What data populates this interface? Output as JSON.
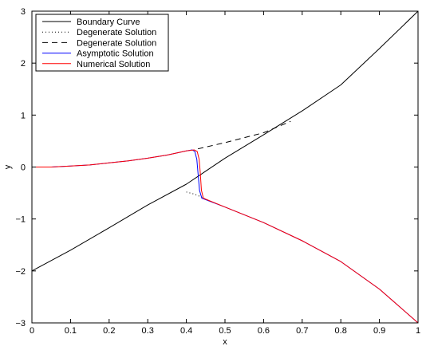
{
  "chart_data": {
    "type": "line",
    "title": "",
    "xlabel": "x",
    "ylabel": "y",
    "xlim": [
      0,
      1
    ],
    "ylim": [
      -3,
      3
    ],
    "x_ticks": [
      0,
      0.1,
      0.2,
      0.3,
      0.4,
      0.5,
      0.6,
      0.7,
      0.8,
      0.9,
      1
    ],
    "x_tick_labels": [
      "0",
      "0.1",
      "0.2",
      "0.3",
      "0.4",
      "0.5",
      "0.6",
      "0.7",
      "0.8",
      "0.9",
      "1"
    ],
    "y_ticks": [
      -3,
      -2,
      -1,
      0,
      1,
      2,
      3
    ],
    "y_tick_labels": [
      "−3",
      "−2",
      "−1",
      "0",
      "1",
      "2",
      "3"
    ],
    "grid": false,
    "legend_position": "top-left",
    "series": [
      {
        "name": "Boundary Curve",
        "color": "#000000",
        "style": "solid",
        "points": [
          [
            0,
            -2.0
          ],
          [
            0.1,
            -1.6
          ],
          [
            0.2,
            -1.17
          ],
          [
            0.3,
            -0.73
          ],
          [
            0.4,
            -0.33
          ],
          [
            0.5,
            0.17
          ],
          [
            0.6,
            0.62
          ],
          [
            0.7,
            1.08
          ],
          [
            0.8,
            1.58
          ],
          [
            0.9,
            2.28
          ],
          [
            1.0,
            3.0
          ]
        ]
      },
      {
        "name": "Degenerate Solution",
        "color": "#000000",
        "style": "dotted",
        "points": [
          [
            0.4,
            -0.48
          ],
          [
            0.42,
            -0.52
          ],
          [
            0.44,
            -0.58
          ],
          [
            0.45,
            -0.62
          ]
        ]
      },
      {
        "name": "Degenerate Solution",
        "color": "#000000",
        "style": "dashed",
        "points": [
          [
            0.43,
            0.35
          ],
          [
            0.5,
            0.47
          ],
          [
            0.6,
            0.66
          ],
          [
            0.67,
            0.88
          ]
        ]
      },
      {
        "name": "Asymptotic Solution",
        "color": "#0000ff",
        "style": "solid",
        "points": [
          [
            0,
            0
          ],
          [
            0.05,
            0.0
          ],
          [
            0.1,
            0.02
          ],
          [
            0.15,
            0.04
          ],
          [
            0.2,
            0.08
          ],
          [
            0.25,
            0.12
          ],
          [
            0.3,
            0.17
          ],
          [
            0.35,
            0.23
          ],
          [
            0.4,
            0.31
          ],
          [
            0.415,
            0.33
          ],
          [
            0.422,
            0.3
          ],
          [
            0.427,
            0.15
          ],
          [
            0.43,
            -0.1
          ],
          [
            0.434,
            -0.45
          ],
          [
            0.44,
            -0.6
          ],
          [
            0.5,
            -0.77
          ],
          [
            0.6,
            -1.07
          ],
          [
            0.7,
            -1.42
          ],
          [
            0.8,
            -1.82
          ],
          [
            0.9,
            -2.35
          ],
          [
            1.0,
            -3.0
          ]
        ]
      },
      {
        "name": "Numerical Solution",
        "color": "#ff0000",
        "style": "solid",
        "points": [
          [
            0,
            0
          ],
          [
            0.05,
            0.0
          ],
          [
            0.1,
            0.02
          ],
          [
            0.15,
            0.04
          ],
          [
            0.2,
            0.08
          ],
          [
            0.25,
            0.12
          ],
          [
            0.3,
            0.17
          ],
          [
            0.35,
            0.23
          ],
          [
            0.4,
            0.31
          ],
          [
            0.42,
            0.33
          ],
          [
            0.428,
            0.3
          ],
          [
            0.433,
            0.15
          ],
          [
            0.436,
            -0.1
          ],
          [
            0.439,
            -0.45
          ],
          [
            0.444,
            -0.6
          ],
          [
            0.5,
            -0.77
          ],
          [
            0.6,
            -1.07
          ],
          [
            0.7,
            -1.42
          ],
          [
            0.8,
            -1.82
          ],
          [
            0.9,
            -2.35
          ],
          [
            1.0,
            -3.0
          ]
        ]
      }
    ]
  }
}
